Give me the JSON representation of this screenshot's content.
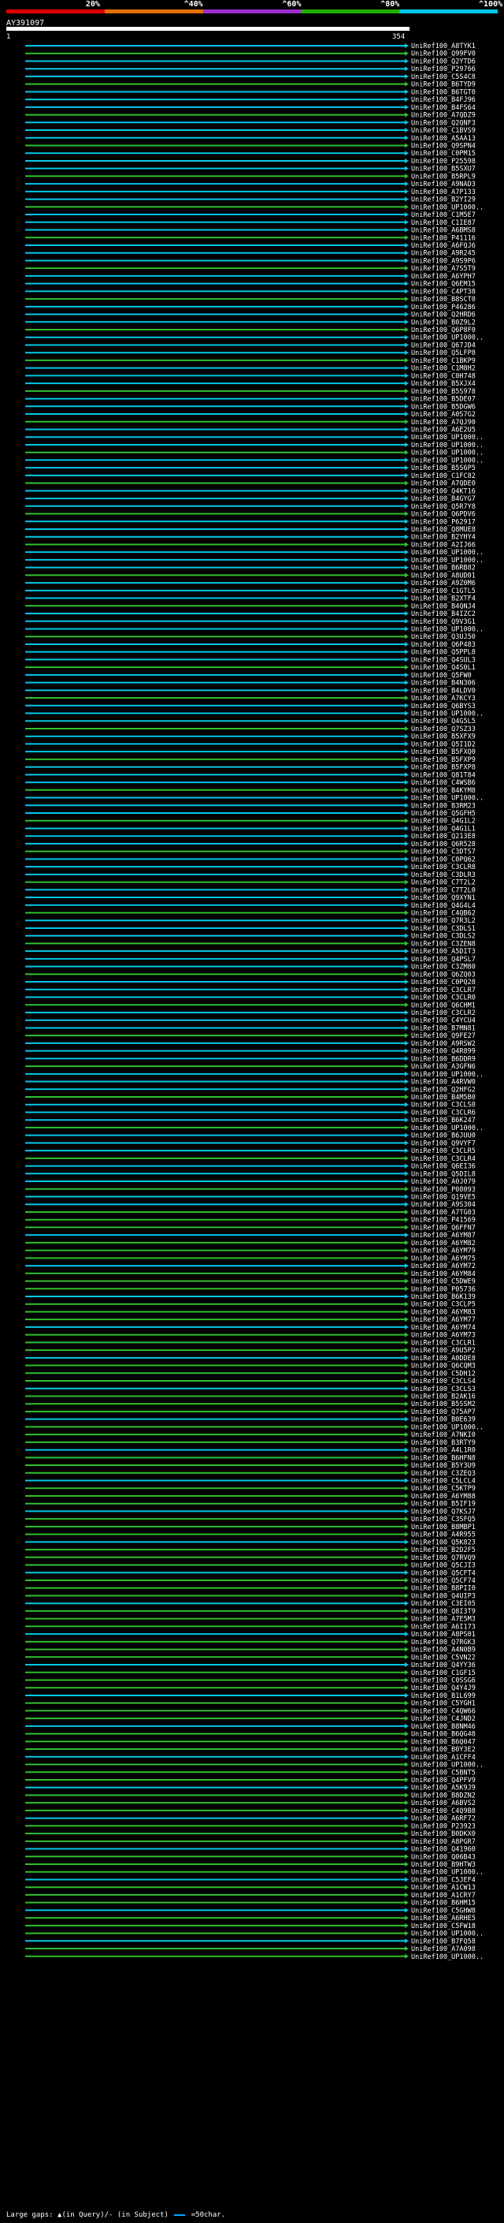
{
  "colorbar": {
    "labels": [
      "20%",
      "^40%",
      "^60%",
      "^80%",
      "^100%"
    ],
    "colors": [
      "#e00000",
      "#e07000",
      "#9b2fd0",
      "#20b000",
      "#00c8e8"
    ]
  },
  "query": {
    "id": "AY391097",
    "start": "1",
    "end": "354"
  },
  "hits": [
    "UniRef100_A8TYK1",
    "UniRef100_Q99FV0",
    "UniRef100_Q2YTD6",
    "UniRef100_P29766",
    "UniRef100_C5S4C8",
    "UniRef100_B6TYD9",
    "UniRef100_B6TGT0",
    "UniRef100_B4FJ96",
    "UniRef100_B4FS64",
    "UniRef100_A7QDZ9",
    "UniRef100_Q2QNF3",
    "UniRef100_C1BVS9",
    "UniRef100_A5AA13",
    "UniRef100_Q9SPN4",
    "UniRef100_C0PM15",
    "UniRef100_P25598",
    "UniRef100_B5SXU7",
    "UniRef100_B5RPL9",
    "UniRef100_A9NAD3",
    "UniRef100_A7P133",
    "UniRef100_B2YI29",
    "UniRef100_UP1000..",
    "UniRef100_C1M5E7",
    "UniRef100_C1IE87",
    "UniRef100_A6BMS8",
    "UniRef100_P41116",
    "UniRef100_A6FQJ6",
    "UniRef100_A9R245",
    "UniRef100_A9S9P6",
    "UniRef100_A7S5T9",
    "UniRef100_A6YPH7",
    "UniRef100_Q6EM15",
    "UniRef100_C4PT38",
    "UniRef100_B8SCT0",
    "UniRef100_P46286",
    "UniRef100_Q2HRD6",
    "UniRef100_B0Z9L2",
    "UniRef100_Q6P8F0",
    "UniRef100_UP1000..",
    "UniRef100_Q67JD4",
    "UniRef100_Q5LFP8",
    "UniRef100_C1BKP9",
    "UniRef100_C1M8H2",
    "UniRef100_C0H748",
    "UniRef100_B5XJX4",
    "UniRef100_B5S978",
    "UniRef100_B5DE07",
    "UniRef100_B5DGW6",
    "UniRef100_A0S7G2",
    "UniRef100_A7QJ90",
    "UniRef100_A6E2U5",
    "UniRef100_UP1000..",
    "UniRef100_UP1000..",
    "UniRef100_UP1000..",
    "UniRef100_UP1000..",
    "UniRef100_B5S6P5",
    "UniRef100_C1FC82",
    "UniRef100_A7QDE0",
    "UniRef100_Q4KT16",
    "UniRef100_B4GYG7",
    "UniRef100_Q5R7Y8",
    "UniRef100_Q6PDV6",
    "UniRef100_P62917",
    "UniRef100_Q8MUE8",
    "UniRef100_B2YHY4",
    "UniRef100_A2IJ66",
    "UniRef100_UP1000..",
    "UniRef100_UP1000..",
    "UniRef100_B6RB82",
    "UniRef100_A8UD01",
    "UniRef100_A9Z0M6",
    "UniRef100_C1GTL5",
    "UniRef100_B2XTF4",
    "UniRef100_B4QNJ4",
    "UniRef100_B4IZC2",
    "UniRef100_Q9V3G1",
    "UniRef100_UP1000..",
    "UniRef100_Q3UJ50",
    "UniRef100_Q6P483",
    "UniRef100_Q5PPL8",
    "UniRef100_Q4SUL3",
    "UniRef100_Q4S0L1",
    "UniRef100_Q5FW0",
    "UniRef100_B4N306",
    "UniRef100_B4LDV0",
    "UniRef100_A7KCY3",
    "UniRef100_Q6BYS3",
    "UniRef100_UP1000..",
    "UniRef100_Q4G5L5",
    "UniRef100_Q7SZ33",
    "UniRef100_B5XFX9",
    "UniRef100_Q5I1D2",
    "UniRef100_B5FXQ0",
    "UniRef100_B5FXP9",
    "UniRef100_B5FXP8",
    "UniRef100_Q81T84",
    "UniRef100_C4WSB6",
    "UniRef100_B4KYM8",
    "UniRef100_UP1000..",
    "UniRef100_B3RM23",
    "UniRef100_Q5GFH5",
    "UniRef100_Q4G1L2",
    "UniRef100_Q4G1L1",
    "UniRef100_Q213E8",
    "UniRef100_Q6R528",
    "UniRef100_C3DTS7",
    "UniRef100_C0PQ62",
    "UniRef100_C3CLR8",
    "UniRef100_C3DLR3",
    "UniRef100_C7T2L2",
    "UniRef100_C7T2L0",
    "UniRef100_Q9XYN1",
    "UniRef100_Q4G4L4",
    "UniRef100_C4QB62",
    "UniRef100_Q7R3L2",
    "UniRef100_C3DLS1",
    "UniRef100_C3DLS2",
    "UniRef100_C3ZEN8",
    "UniRef100_A5DIT3",
    "UniRef100_Q4PSL7",
    "UniRef100_C3ZM80",
    "UniRef100_Q6ZQ03",
    "UniRef100_C0PQ28",
    "UniRef100_C3CLR7",
    "UniRef100_C3CLR0",
    "UniRef100_Q6CHM1",
    "UniRef100_C3CLR2",
    "UniRef100_C4YCU4",
    "UniRef100_B7MN81",
    "UniRef100_Q9FE27",
    "UniRef100_A9RSW2",
    "UniRef100_Q4R899",
    "UniRef100_B6DDR9",
    "UniRef100_A3GFN6",
    "UniRef100_UP1000..",
    "UniRef100_A4RVW0",
    "UniRef100_Q2HFG2",
    "UniRef100_B4M5B0",
    "UniRef100_C3CLS0",
    "UniRef100_C3CLR6",
    "UniRef100_B6K247",
    "UniRef100_UP1000..",
    "UniRef100_B6JUU0",
    "UniRef100_Q9VYF7",
    "UniRef100_C3CLR5",
    "UniRef100_C3CLR4",
    "UniRef100_Q6EI36",
    "UniRef100_Q5DIL8",
    "UniRef100_A0J079",
    "UniRef100_P08093",
    "UniRef100_Q19VE5",
    "UniRef100_A9S304",
    "UniRef100_A7TG03",
    "UniRef100_P41569",
    "UniRef100_Q6FFN7",
    "UniRef100_A6YM87",
    "UniRef100_A6YM82",
    "UniRef100_A6YM79",
    "UniRef100_A6YM75",
    "UniRef100_A6YM72",
    "UniRef100_A6YM84",
    "UniRef100_C5DWE9",
    "UniRef100_P05736",
    "UniRef100_B6K139",
    "UniRef100_C3CLP5",
    "UniRef100_A6YM83",
    "UniRef100_A6YM77",
    "UniRef100_A6YM74",
    "UniRef100_A6YM73",
    "UniRef100_C3CLR1",
    "UniRef100_A9U5P2",
    "UniRef100_A0DDE8",
    "UniRef100_Q6CQM3",
    "UniRef100_C5DH12",
    "UniRef100_C3CLS4",
    "UniRef100_C3CLS3",
    "UniRef100_B2AK16",
    "UniRef100_B5SSM2",
    "UniRef100_Q75AP7",
    "UniRef100_B0E639",
    "UniRef100_UP1000..",
    "UniRef100_A7NKI0",
    "UniRef100_B3RTY9",
    "UniRef100_A4L1R0",
    "UniRef100_B6HFN8",
    "UniRef100_B5Y3U9",
    "UniRef100_C3ZEQ3",
    "UniRef100_C5LCL4",
    "UniRef100_C5KTP9",
    "UniRef100_A6YM88",
    "UniRef100_B5IF19",
    "UniRef100_Q7KSJ7",
    "UniRef100_C3SFQ5",
    "UniRef100_B8MBP1",
    "UniRef100_A4R955",
    "UniRef100_Q5K823",
    "UniRef100_B2D2F5",
    "UniRef100_Q7RVQ9",
    "UniRef100_Q5CJI3",
    "UniRef100_Q5CFT4",
    "UniRef100_Q5CF74",
    "UniRef100_B8PII0",
    "UniRef100_Q4UIP3",
    "UniRef100_C3EI05",
    "UniRef100_Q8I3T9",
    "UniRef100_A7E5M3",
    "UniRef100_A6I173",
    "UniRef100_A8PS01",
    "UniRef100_Q7RGK3",
    "UniRef100_A4N0B9",
    "UniRef100_C5VN22",
    "UniRef100_Q4YY36",
    "UniRef100_C1GF15",
    "UniRef100_C0SSG6",
    "UniRef100_Q4Y4J9",
    "UniRef100_B1L699",
    "UniRef100_C5YGH1",
    "UniRef100_C4QW66",
    "UniRef100_C4JND2",
    "UniRef100_B8NM46",
    "UniRef100_B6QG48",
    "UniRef100_B6Q047",
    "UniRef100_B0Y3E2",
    "UniRef100_A1CFF4",
    "UniRef100_UP1000..",
    "UniRef100_C5BNT5",
    "UniRef100_Q4PFV9",
    "UniRef100_A5K9J9",
    "UniRef100_B8DZN2",
    "UniRef100_A6BVS2",
    "UniRef100_C4Q9B8",
    "UniRef100_A6RF72",
    "UniRef100_P23923",
    "UniRef100_B0DKX0",
    "UniRef100_A8PGR7",
    "UniRef100_Q41960",
    "UniRef100_Q06B43",
    "UniRef100_B9HTW3",
    "UniRef100_UP1000..",
    "UniRef100_C5JEF4",
    "UniRef100_A1CW13",
    "UniRef100_A1CRY7",
    "UniRef100_B6HM15",
    "UniRef100_C5GHW8",
    "UniRef100_A6RHE5",
    "UniRef100_C5FW18",
    "UniRef100_UP1000..",
    "UniRef100_B7FQ58",
    "UniRef100_A7A098",
    "UniRef100_UP1000.."
  ],
  "footer": {
    "text": "Large gaps: ▲(in Query)/- (in Subject)",
    "legend": "=50char."
  }
}
